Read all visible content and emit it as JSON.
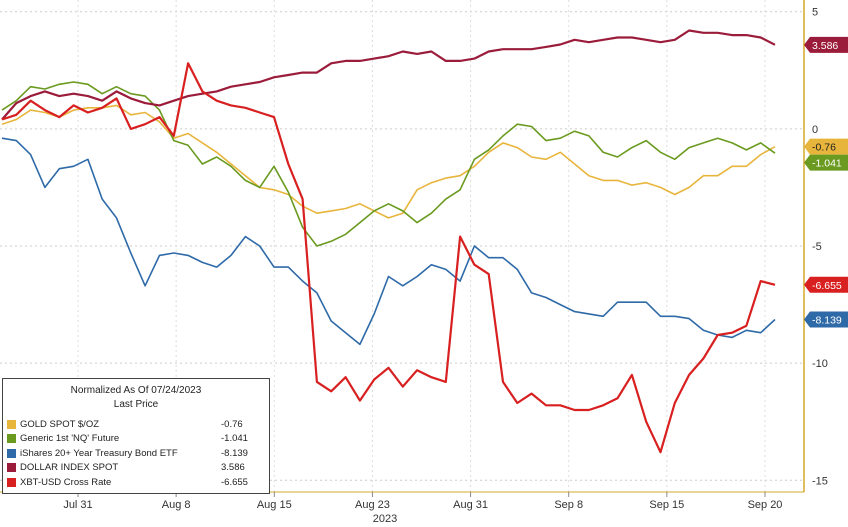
{
  "chart_data": {
    "type": "line",
    "title": "",
    "xlabel": "2023",
    "ylabel": "",
    "x_ticks": [
      "Jul 31",
      "Aug 8",
      "Aug 15",
      "Aug 23",
      "Aug 31",
      "Sep 8",
      "Sep 15",
      "Sep 20"
    ],
    "y_ticks": [
      5,
      0,
      -5,
      -10,
      -15
    ],
    "ylim": [
      -15.5,
      5.5
    ],
    "grid": true,
    "legend_position": "bottom-left",
    "legend": {
      "title": "Normalized As Of 07/24/2023",
      "subtitle": "Last Price"
    },
    "series": [
      {
        "name": "GOLD SPOT $/OZ",
        "color": "#e8b53c",
        "last": -0.76,
        "last_label": "-0.76",
        "values": [
          0.2,
          0.4,
          0.8,
          0.7,
          0.5,
          0.8,
          0.9,
          0.9,
          1.0,
          0.6,
          0.7,
          0.3,
          -0.4,
          -0.2,
          -0.6,
          -1.0,
          -1.5,
          -2.0,
          -2.5,
          -2.6,
          -2.8,
          -3.3,
          -3.6,
          -3.5,
          -3.4,
          -3.2,
          -3.5,
          -3.8,
          -3.6,
          -2.6,
          -2.3,
          -2.1,
          -2.0,
          -1.6,
          -1.0,
          -0.6,
          -0.8,
          -1.2,
          -1.3,
          -1.0,
          -1.5,
          -2.0,
          -2.2,
          -2.2,
          -2.4,
          -2.3,
          -2.5,
          -2.8,
          -2.5,
          -2.0,
          -2.0,
          -1.6,
          -1.6,
          -1.1,
          -0.76
        ]
      },
      {
        "name": "Generic 1st 'NQ' Future",
        "color": "#6a9a1f",
        "last": -1.041,
        "last_label": "-1.041",
        "values": [
          0.8,
          1.2,
          1.8,
          1.7,
          1.9,
          2.0,
          1.9,
          1.5,
          1.8,
          1.5,
          1.4,
          0.8,
          -0.5,
          -0.7,
          -1.5,
          -1.2,
          -1.6,
          -2.2,
          -2.5,
          -1.6,
          -2.7,
          -4.2,
          -5.0,
          -4.8,
          -4.5,
          -4.0,
          -3.5,
          -3.2,
          -3.5,
          -4.0,
          -3.6,
          -3.0,
          -2.6,
          -1.3,
          -0.9,
          -0.3,
          0.2,
          0.1,
          -0.5,
          -0.4,
          -0.1,
          -0.3,
          -1.0,
          -1.2,
          -0.8,
          -0.5,
          -1.0,
          -1.3,
          -0.8,
          -0.6,
          -0.4,
          -0.6,
          -0.9,
          -0.6,
          -1.041
        ]
      },
      {
        "name": "iShares 20+ Year Treasury Bond ETF",
        "color": "#2f6aa8",
        "last": -8.139,
        "last_label": "-8.139",
        "values": [
          -0.4,
          -0.5,
          -1.1,
          -2.5,
          -1.7,
          -1.6,
          -1.3,
          -3.0,
          -3.8,
          -5.3,
          -6.7,
          -5.4,
          -5.3,
          -5.4,
          -5.7,
          -5.9,
          -5.4,
          -4.6,
          -5.0,
          -5.9,
          -5.9,
          -6.5,
          -7.0,
          -8.2,
          -8.7,
          -9.2,
          -7.9,
          -6.3,
          -6.7,
          -6.3,
          -5.8,
          -6.0,
          -6.5,
          -5.0,
          -5.5,
          -5.5,
          -6.0,
          -7.0,
          -7.2,
          -7.5,
          -7.8,
          -7.9,
          -8.0,
          -7.4,
          -7.4,
          -7.4,
          -8.0,
          -8.0,
          -8.1,
          -8.6,
          -8.8,
          -8.9,
          -8.6,
          -8.7,
          -8.139
        ]
      },
      {
        "name": "DOLLAR INDEX SPOT",
        "color": "#9b1c3a",
        "last": 3.586,
        "last_label": "3.586",
        "values": [
          0.4,
          1.1,
          1.4,
          1.6,
          1.4,
          1.5,
          1.4,
          1.2,
          1.6,
          1.3,
          1.1,
          1.0,
          1.2,
          1.4,
          1.5,
          1.6,
          1.8,
          1.9,
          2.0,
          2.2,
          2.3,
          2.4,
          2.4,
          2.8,
          2.9,
          2.9,
          3.0,
          3.1,
          3.3,
          3.2,
          3.3,
          2.9,
          2.9,
          3.0,
          3.3,
          3.4,
          3.4,
          3.4,
          3.5,
          3.6,
          3.8,
          3.7,
          3.8,
          3.9,
          3.9,
          3.8,
          3.7,
          3.8,
          4.2,
          4.1,
          4.1,
          4.0,
          4.0,
          3.9,
          3.586
        ]
      },
      {
        "name": "XBT-USD Cross Rate",
        "color": "#d82020",
        "last": -6.655,
        "last_label": "-6.655",
        "values": [
          0.4,
          0.6,
          1.2,
          0.8,
          0.5,
          1.0,
          0.7,
          0.9,
          1.3,
          0.0,
          0.2,
          0.5,
          -0.3,
          2.8,
          1.6,
          1.2,
          1.0,
          0.9,
          0.7,
          0.5,
          -1.5,
          -3.0,
          -10.8,
          -11.2,
          -10.6,
          -11.6,
          -10.7,
          -10.2,
          -11.0,
          -10.3,
          -10.6,
          -10.8,
          -4.6,
          -5.8,
          -6.2,
          -10.8,
          -11.7,
          -11.3,
          -11.8,
          -11.8,
          -12.0,
          -12.0,
          -11.8,
          -11.5,
          -10.5,
          -12.5,
          -13.8,
          -11.7,
          -10.5,
          -9.8,
          -8.8,
          -8.7,
          -8.4,
          -6.5,
          -6.655
        ]
      }
    ]
  }
}
